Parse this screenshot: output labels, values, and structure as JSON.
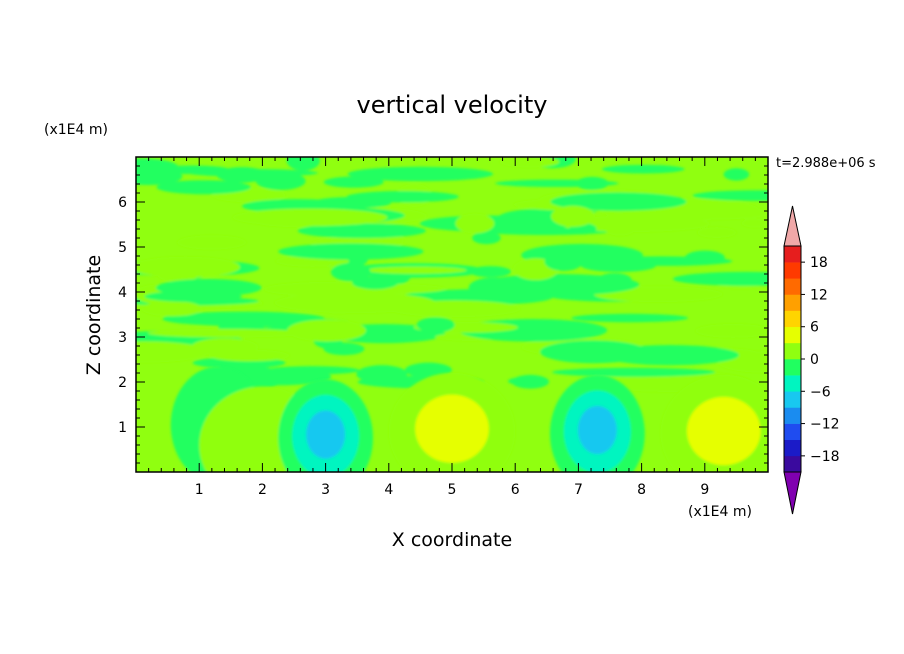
{
  "chart_data": {
    "type": "heatmap",
    "title": "vertical velocity",
    "xlabel": "X coordinate",
    "ylabel": "Z coordinate",
    "x_unit": "(x1E4 m)",
    "z_unit": "(x1E4 m)",
    "time_label": "t=2.988e+06 s",
    "xlim": [
      0,
      10
    ],
    "ylim": [
      0,
      7
    ],
    "x_ticks": [
      1,
      2,
      3,
      4,
      5,
      6,
      7,
      8,
      9
    ],
    "y_ticks": [
      1,
      2,
      3,
      4,
      5,
      6
    ],
    "colorbar": {
      "levels": [
        -21,
        -18,
        -15,
        -12,
        -9,
        -6,
        -3,
        0,
        3,
        6,
        9,
        12,
        15,
        18,
        21
      ],
      "tick_values": [
        -18,
        -12,
        -6,
        0,
        6,
        12,
        18
      ],
      "tick_labels": [
        "−18",
        "−12",
        "−6",
        "0",
        "6",
        "12",
        "18"
      ],
      "colors": [
        "#8000b0",
        "#3a0a9e",
        "#1b1bc8",
        "#1f4cf0",
        "#1a8cf0",
        "#18c8f0",
        "#00f5c0",
        "#20ff60",
        "#90ff10",
        "#e6ff00",
        "#ffd400",
        "#ffa000",
        "#ff6a00",
        "#ff3a00",
        "#e61e1e",
        "#f0a8a8"
      ]
    },
    "features": [
      {
        "x": 1.3,
        "z": 1.1,
        "value": -5,
        "note": "downdraft"
      },
      {
        "x": 2.0,
        "z": 0.6,
        "value": 5,
        "note": "updraft"
      },
      {
        "x": 3.0,
        "z": 0.8,
        "value": -9,
        "note": "downdraft"
      },
      {
        "x": 5.0,
        "z": 0.95,
        "value": 7,
        "note": "updraft"
      },
      {
        "x": 7.3,
        "z": 0.9,
        "value": -10,
        "note": "downdraft"
      },
      {
        "x": 9.3,
        "z": 0.9,
        "value": 8,
        "note": "updraft"
      }
    ]
  }
}
